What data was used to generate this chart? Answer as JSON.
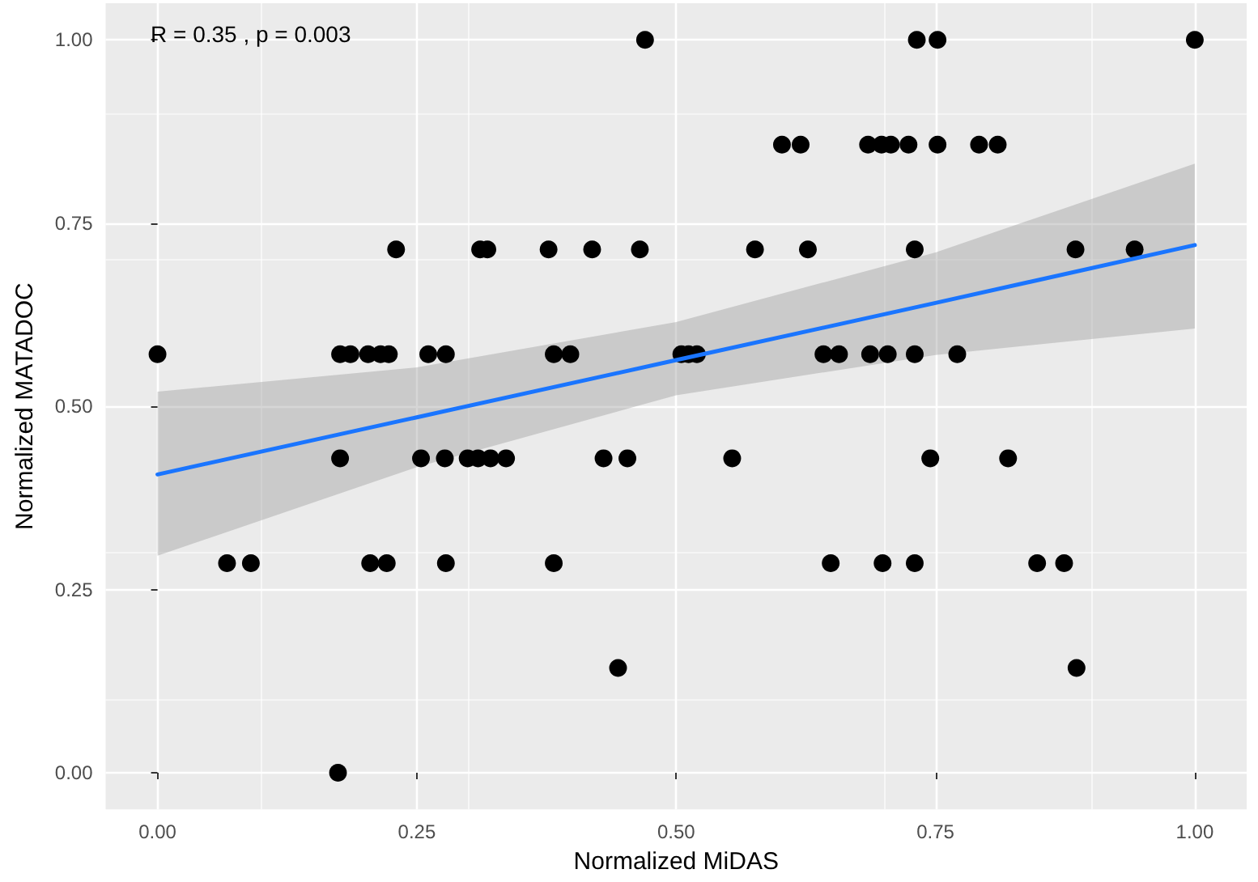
{
  "chart_data": {
    "type": "scatter",
    "xlabel": "Normalized MiDAS",
    "ylabel": "Normalized MATADOC",
    "annotations": [
      "R = 0.35 , p = 0.003"
    ],
    "xlim": [
      -0.05,
      1.05
    ],
    "ylim": [
      -0.05,
      1.05
    ],
    "xticks": [
      {
        "value": 0,
        "label": "0.00"
      },
      {
        "value": 0.25,
        "label": "0.25"
      },
      {
        "value": 0.5,
        "label": "0.50"
      },
      {
        "value": 0.75,
        "label": "0.75"
      },
      {
        "value": 1,
        "label": "1.00"
      }
    ],
    "yticks": [
      {
        "value": 0,
        "label": "0.00"
      },
      {
        "value": 0.25,
        "label": "0.25"
      },
      {
        "value": 0.5,
        "label": "0.50"
      },
      {
        "value": 0.75,
        "label": "0.75"
      },
      {
        "value": 1,
        "label": "1.00"
      }
    ],
    "grid": true,
    "marker": "circle",
    "series": [
      {
        "color": "#000000",
        "x": [
          0.47,
          0.732,
          0.752,
          1.0,
          0.602,
          0.62,
          0.685,
          0.698,
          0.707,
          0.724,
          0.752,
          0.792,
          0.81,
          0.23,
          0.311,
          0.318,
          0.377,
          0.419,
          0.465,
          0.576,
          0.627,
          0.73,
          0.885,
          0.942,
          0,
          0.176,
          0.186,
          0.203,
          0.215,
          0.223,
          0.261,
          0.278,
          0.382,
          0.398,
          0.505,
          0.512,
          0.52,
          0.642,
          0.657,
          0.687,
          0.704,
          0.73,
          0.771,
          0.176,
          0.254,
          0.277,
          0.299,
          0.309,
          0.321,
          0.336,
          0.43,
          0.453,
          0.554,
          0.745,
          0.82,
          0.067,
          0.09,
          0.205,
          0.221,
          0.278,
          0.382,
          0.649,
          0.699,
          0.73,
          0.848,
          0.874,
          0.444,
          0.886,
          0.174
        ],
        "values": [
          1,
          1,
          1,
          1,
          0.857,
          0.857,
          0.857,
          0.857,
          0.857,
          0.857,
          0.857,
          0.857,
          0.857,
          0.714,
          0.714,
          0.714,
          0.714,
          0.714,
          0.714,
          0.714,
          0.714,
          0.714,
          0.714,
          0.714,
          0.571,
          0.571,
          0.571,
          0.571,
          0.571,
          0.571,
          0.571,
          0.571,
          0.571,
          0.571,
          0.571,
          0.571,
          0.571,
          0.571,
          0.571,
          0.571,
          0.571,
          0.571,
          0.571,
          0.429,
          0.429,
          0.429,
          0.429,
          0.429,
          0.429,
          0.429,
          0.429,
          0.429,
          0.429,
          0.429,
          0.429,
          0.286,
          0.286,
          0.286,
          0.286,
          0.286,
          0.286,
          0.286,
          0.286,
          0.286,
          0.286,
          0.286,
          0.143,
          0.143,
          0
        ]
      },
      {
        "type": "line",
        "color": "#1a75ff",
        "marker": "none",
        "line_style": "solid",
        "x": [
          0,
          0.25,
          0.5,
          0.75,
          1
        ],
        "values": [
          0.407,
          0.485,
          0.563,
          0.641,
          0.72
        ],
        "lower": [
          0.296,
          0.417,
          0.515,
          0.57,
          0.606
        ],
        "upper": [
          0.52,
          0.553,
          0.615,
          0.71,
          0.831
        ]
      }
    ]
  }
}
